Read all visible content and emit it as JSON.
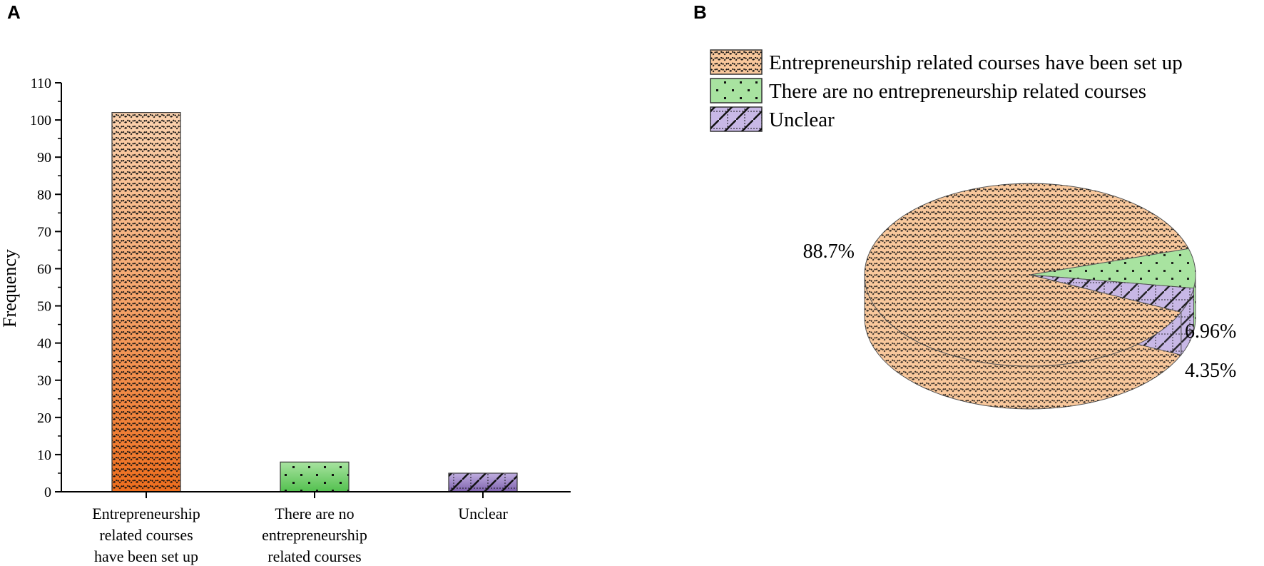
{
  "panels": {
    "a_label": "A",
    "b_label": "B"
  },
  "chart_data": [
    {
      "type": "bar",
      "title": "",
      "xlabel": "",
      "ylabel": "Frequency",
      "ylim": [
        0,
        110
      ],
      "yticks": [
        0,
        10,
        20,
        30,
        40,
        50,
        60,
        70,
        80,
        90,
        100,
        110
      ],
      "categories": [
        [
          "Entrepreneurship",
          "related courses",
          "have been set up"
        ],
        [
          "There are no",
          "entrepreneurship",
          "related courses"
        ],
        [
          "Unclear"
        ]
      ],
      "values": [
        102,
        8,
        5
      ],
      "colors": [
        "#f07a2e",
        "#6fcf6a",
        "#8e72b8"
      ],
      "grid": false
    },
    {
      "type": "pie",
      "title": "",
      "labels": [
        "Entrepreneurship related courses have been set up",
        "There are no entrepreneurship related courses",
        "Unclear"
      ],
      "percent_labels": [
        "88.7%",
        "6.96%",
        "4.35%"
      ],
      "values": [
        88.7,
        6.96,
        4.35
      ],
      "colors": [
        "#f9c89c",
        "#a8e3a0",
        "#c8b8e6"
      ],
      "legend_position": "top-left",
      "style": "3d"
    }
  ]
}
